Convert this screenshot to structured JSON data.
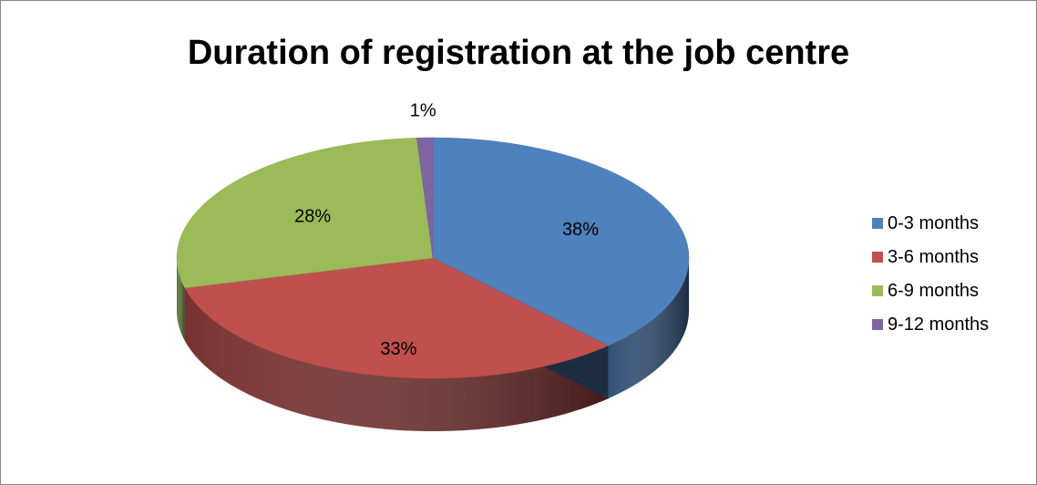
{
  "chart_data": {
    "type": "pie",
    "title": "Duration of registration at the job centre",
    "categories": [
      "0-3 months",
      "3-6 months",
      "6-9 months",
      "9-12 months"
    ],
    "values": [
      38,
      33,
      28,
      1
    ],
    "data_labels": [
      "38%",
      "33%",
      "28%",
      "1%"
    ],
    "colors": [
      "#4F81BD",
      "#C0504D",
      "#9BBB59",
      "#8064A2"
    ],
    "legend_position": "right",
    "style": "3d"
  }
}
